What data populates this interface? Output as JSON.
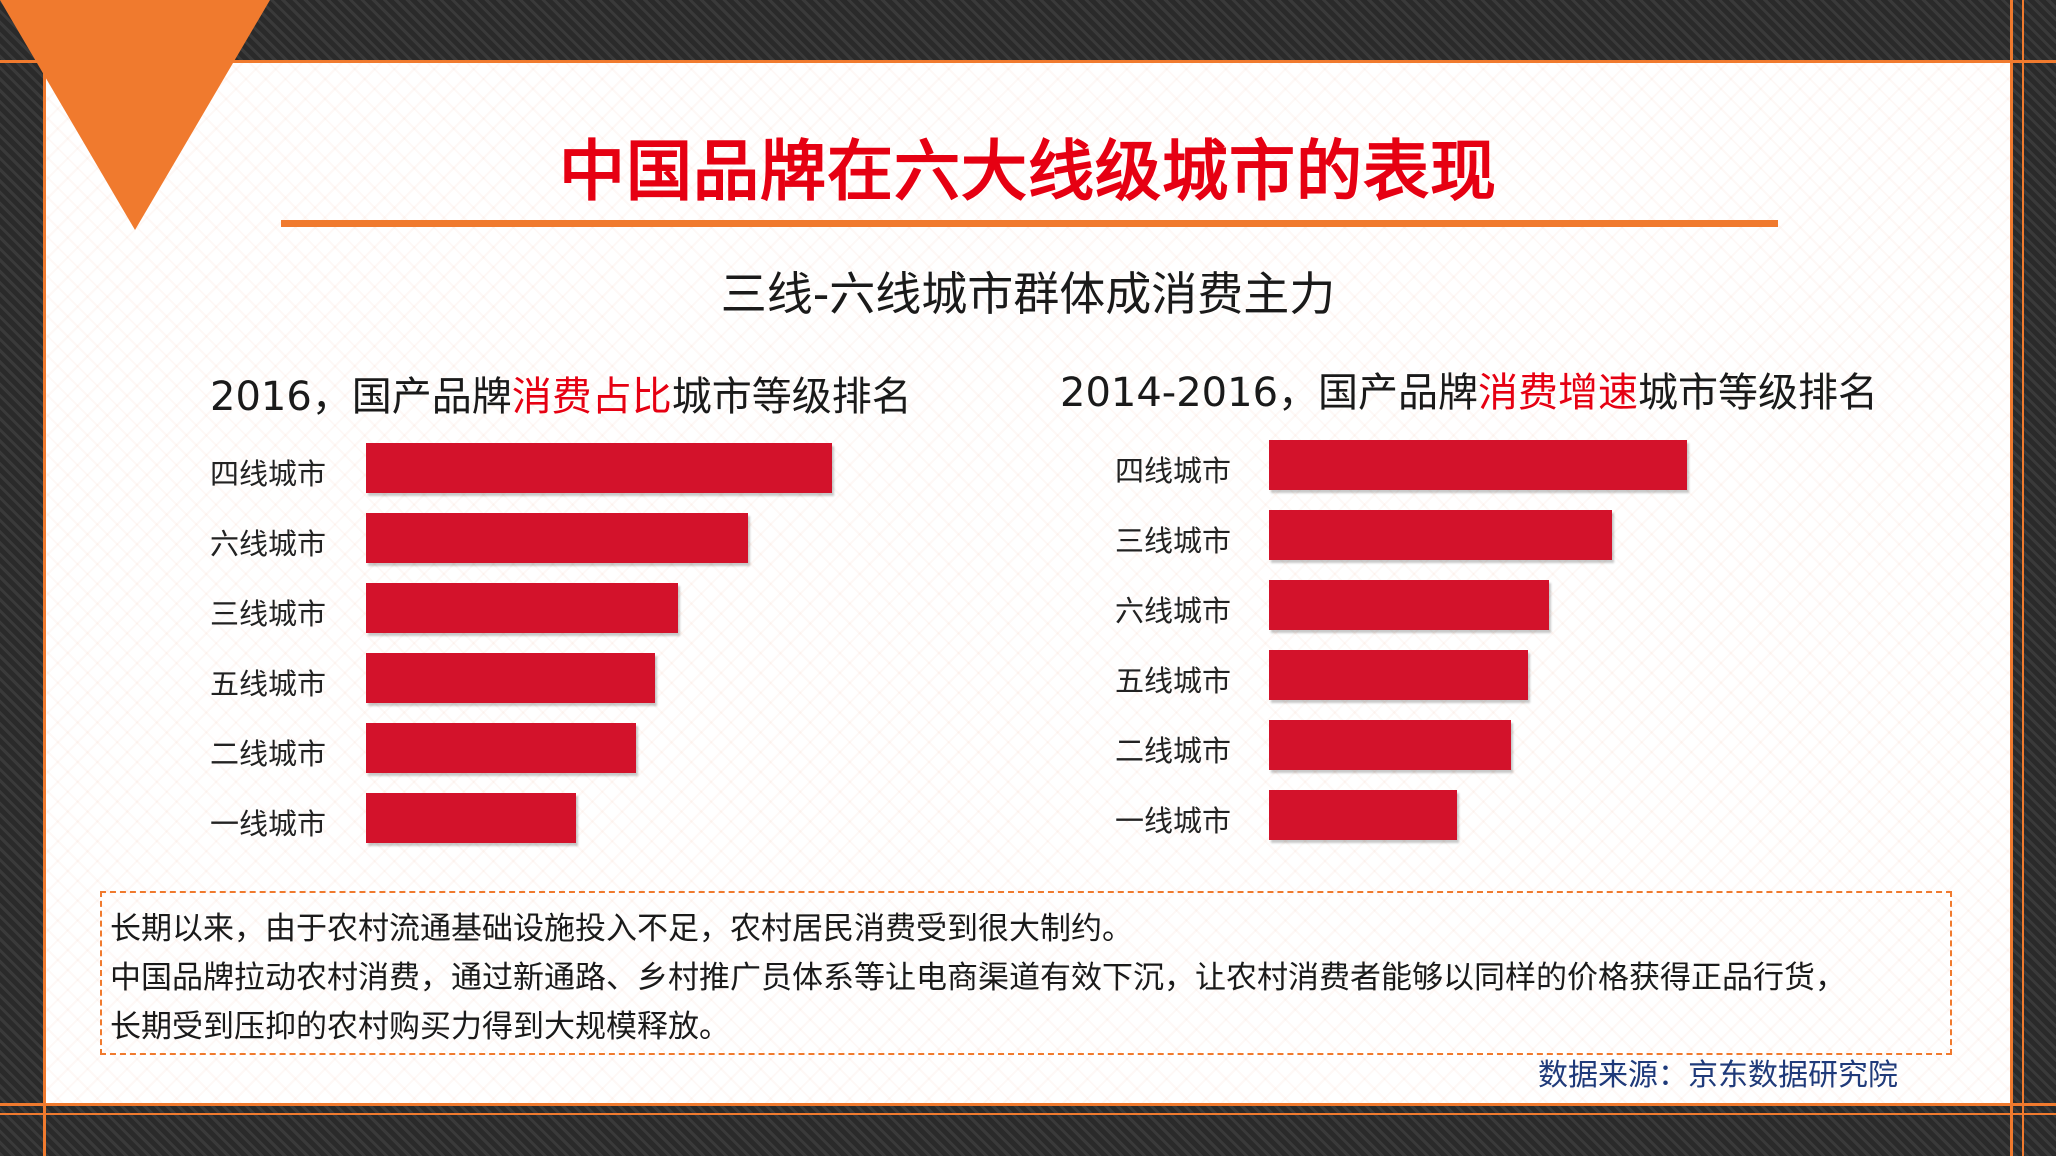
{
  "title": "中国品牌在六大线级城市的表现",
  "subtitle": "三线-六线城市群体成消费主力",
  "colors": {
    "accent": "#f07a2e",
    "bar": "#d3122b",
    "title": "#e60012",
    "source": "#1f3a7a"
  },
  "chart_data": [
    {
      "type": "bar",
      "orientation": "horizontal",
      "title_parts": {
        "before": "2016，国产品牌",
        "highlight": "消费占比",
        "after": "城市等级排名"
      },
      "categories": [
        "四线城市",
        "六线城市",
        "三线城市",
        "五线城市",
        "二线城市",
        "一线城市"
      ],
      "values": [
        100,
        82,
        67,
        62,
        58,
        45
      ],
      "ylim": [
        0,
        100
      ],
      "axis_visible": false,
      "grid": false
    },
    {
      "type": "bar",
      "orientation": "horizontal",
      "title_parts": {
        "before": "2014-2016，国产品牌",
        "highlight": "消费增速",
        "after": "城市等级排名"
      },
      "categories": [
        "四线城市",
        "三线城市",
        "六线城市",
        "五线城市",
        "二线城市",
        "一线城市"
      ],
      "values": [
        100,
        82,
        67,
        62,
        58,
        45
      ],
      "ylim": [
        0,
        100
      ],
      "axis_visible": false,
      "grid": false
    }
  ],
  "note": {
    "lines": [
      "长期以来，由于农村流通基础设施投入不足，农村居民消费受到很大制约。",
      "中国品牌拉动农村消费，通过新通路、乡村推广员体系等让电商渠道有效下沉，让农村消费者能够以同样的价格获得正品行货，",
      "长期受到压抑的农村购买力得到大规模释放。"
    ]
  },
  "source": "数据来源：京东数据研究院"
}
